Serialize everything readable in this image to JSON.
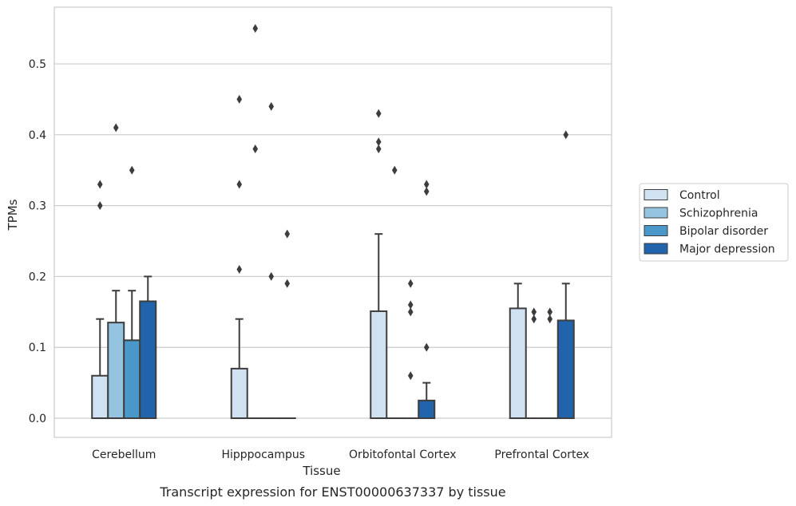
{
  "caption": "Transcript expression for ENST00000637337 by tissue",
  "chart_data": {
    "type": "bar",
    "title": "",
    "xlabel": "Tissue",
    "ylabel": "TPMs",
    "ylim": [
      -0.027,
      0.58
    ],
    "yticks": [
      0.0,
      0.1,
      0.2,
      0.3,
      0.4,
      0.5
    ],
    "ytick_labels": [
      "0.0",
      "0.1",
      "0.2",
      "0.3",
      "0.4",
      "0.5"
    ],
    "grid": "horizontal",
    "legend_position": "right",
    "categories": [
      "Cerebellum",
      "Hipppocampus",
      "Orbitofontal Cortex",
      "Prefrontal Cortex"
    ],
    "series": [
      {
        "name": "Control",
        "color": "#d0e1f2",
        "values": [
          0.06,
          0.07,
          0.151,
          0.155
        ],
        "error_upper": [
          0.14,
          0.14,
          0.26,
          0.19
        ],
        "outliers": [
          [
            0.3,
            0.33
          ],
          [
            0.21,
            0.33,
            0.45
          ],
          [
            0.38,
            0.39,
            0.43
          ],
          []
        ]
      },
      {
        "name": "Schizophrenia",
        "color": "#94c4df",
        "values": [
          0.135,
          0.0,
          0.0,
          0.0
        ],
        "error_upper": [
          0.18,
          null,
          null,
          null
        ],
        "outliers": [
          [
            0.41
          ],
          [
            0.38,
            0.55
          ],
          [
            0.35
          ],
          [
            0.14,
            0.15
          ]
        ]
      },
      {
        "name": "Bipolar disorder",
        "color": "#4a98c9",
        "values": [
          0.11,
          0.0,
          0.0,
          0.0
        ],
        "error_upper": [
          0.18,
          null,
          null,
          null
        ],
        "outliers": [
          [
            0.35
          ],
          [
            0.2,
            0.44
          ],
          [
            0.06,
            0.15,
            0.16,
            0.19
          ],
          [
            0.14,
            0.15
          ]
        ]
      },
      {
        "name": "Major depression",
        "color": "#2164ab",
        "values": [
          0.165,
          0.0,
          0.025,
          0.138
        ],
        "error_upper": [
          0.2,
          null,
          0.05,
          0.19
        ],
        "outliers": [
          [],
          [
            0.19,
            0.26
          ],
          [
            0.1,
            0.32,
            0.33
          ],
          [
            0.4
          ]
        ]
      }
    ]
  }
}
